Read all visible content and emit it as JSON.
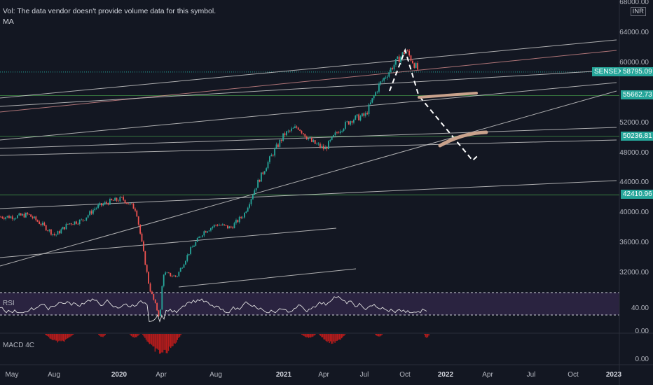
{
  "header": {
    "volume_note": "Vol: The data vendor doesn't provide volume data for this symbol.",
    "ma_label": "MA"
  },
  "price_axis": {
    "unit": "INR",
    "ticks": [
      "68000.00",
      "64000.00",
      "60000.00",
      "52000.00",
      "48000.00",
      "44000.00",
      "40000.00",
      "36000.00",
      "32000.00"
    ]
  },
  "price_tags": [
    {
      "label": "SENSEX",
      "value": "58795.09",
      "color": "#26a69a"
    },
    {
      "value": "55662.73",
      "color": "#26a69a"
    },
    {
      "value": "50236.81",
      "color": "#26a69a"
    },
    {
      "value": "42410.96",
      "color": "#26a69a"
    }
  ],
  "rsi_pane": {
    "label": "RSI",
    "tick": "40.00"
  },
  "macd_pane": {
    "label": "MACD 4C",
    "ticks": [
      "0.00",
      "0.00"
    ]
  },
  "time_axis": [
    {
      "label": "May",
      "bold": false
    },
    {
      "label": "Aug",
      "bold": false
    },
    {
      "label": "2020",
      "bold": true
    },
    {
      "label": "Apr",
      "bold": false
    },
    {
      "label": "Aug",
      "bold": false
    },
    {
      "label": "2021",
      "bold": true
    },
    {
      "label": "Apr",
      "bold": false
    },
    {
      "label": "Jul",
      "bold": false
    },
    {
      "label": "Oct",
      "bold": false
    },
    {
      "label": "2022",
      "bold": true
    },
    {
      "label": "Apr",
      "bold": false
    },
    {
      "label": "Jul",
      "bold": false
    },
    {
      "label": "Oct",
      "bold": false
    },
    {
      "label": "2023",
      "bold": true
    }
  ],
  "colors": {
    "up": "#26a69a",
    "down": "#ef5350",
    "trendline": "#c8c8c8",
    "channel": "#ef9a9a",
    "support": "#4caf50",
    "projection": "#ffffff",
    "marker": "#c9a28c",
    "rsi_band": "#2a2340",
    "rsi_line": "#e0e0e0",
    "macd": "#b71c1c"
  },
  "chart_data": {
    "type": "candlestick",
    "symbol": "SENSEX",
    "last_price": 58795.09,
    "support_levels": [
      55662.73,
      50236.81,
      42410.96
    ],
    "price_path": [
      [
        "2019-05",
        39500
      ],
      [
        "2019-06",
        39800
      ],
      [
        "2019-07",
        38500
      ],
      [
        "2019-08",
        37000
      ],
      [
        "2019-09",
        38600
      ],
      [
        "2019-10",
        39000
      ],
      [
        "2019-11",
        40700
      ],
      [
        "2019-12",
        41500
      ],
      [
        "2020-01",
        41900
      ],
      [
        "2020-02",
        40500
      ],
      [
        "2020-03",
        30000
      ],
      [
        "2020-03-24",
        26000
      ],
      [
        "2020-04",
        32000
      ],
      [
        "2020-05",
        31500
      ],
      [
        "2020-06",
        35000
      ],
      [
        "2020-07",
        37500
      ],
      [
        "2020-08",
        38500
      ],
      [
        "2020-09",
        38000
      ],
      [
        "2020-10",
        39800
      ],
      [
        "2020-11",
        44000
      ],
      [
        "2020-12",
        47500
      ],
      [
        "2021-01",
        50500
      ],
      [
        "2021-02",
        51500
      ],
      [
        "2021-03",
        49500
      ],
      [
        "2021-04",
        48500
      ],
      [
        "2021-05",
        51000
      ],
      [
        "2021-06",
        52500
      ],
      [
        "2021-07",
        53000
      ],
      [
        "2021-08",
        57000
      ],
      [
        "2021-09",
        59500
      ],
      [
        "2021-10",
        61700
      ],
      [
        "2021-11",
        58795
      ]
    ],
    "projection_path": [
      [
        "2021-10",
        61700
      ],
      [
        "2021-11",
        55662.73
      ],
      [
        "2022-03",
        47000
      ],
      [
        "2022-03-15",
        47800
      ]
    ]
  }
}
